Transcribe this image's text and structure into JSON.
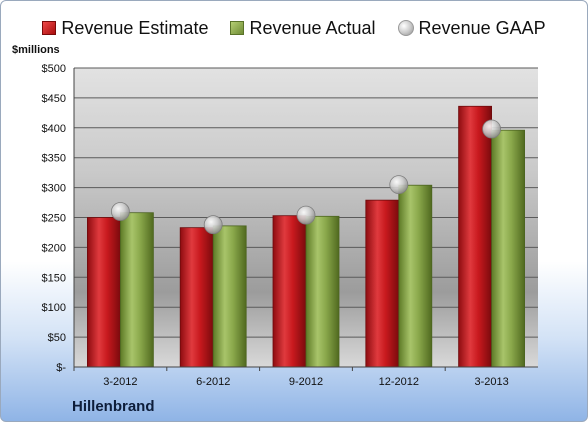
{
  "legend": {
    "estimate": "Revenue Estimate",
    "actual": "Revenue Actual",
    "gaap": "Revenue GAAP"
  },
  "unit_label": "$millions",
  "company": "Hillenbrand",
  "colors": {
    "estimate": "#c8191e",
    "actual": "#8aa84b",
    "gaap": "#bfbfbf"
  },
  "chart_data": {
    "type": "bar",
    "categories": [
      "3-2012",
      "6-2012",
      "9-2012",
      "12-2012",
      "3-2013"
    ],
    "series": [
      {
        "name": "Revenue Estimate",
        "values": [
          250,
          233,
          253,
          279,
          436
        ]
      },
      {
        "name": "Revenue Actual",
        "values": [
          258,
          236,
          252,
          304,
          396
        ]
      },
      {
        "name": "Revenue GAAP",
        "values": [
          260,
          238,
          254,
          305,
          398
        ]
      }
    ],
    "ylabel": "$millions",
    "ylim": [
      0,
      500
    ],
    "yticks": [
      "$-",
      "$50",
      "$100",
      "$150",
      "$200",
      "$250",
      "$300",
      "$350",
      "$400",
      "$450",
      "$500"
    ],
    "grid": true,
    "legend_position": "top"
  }
}
